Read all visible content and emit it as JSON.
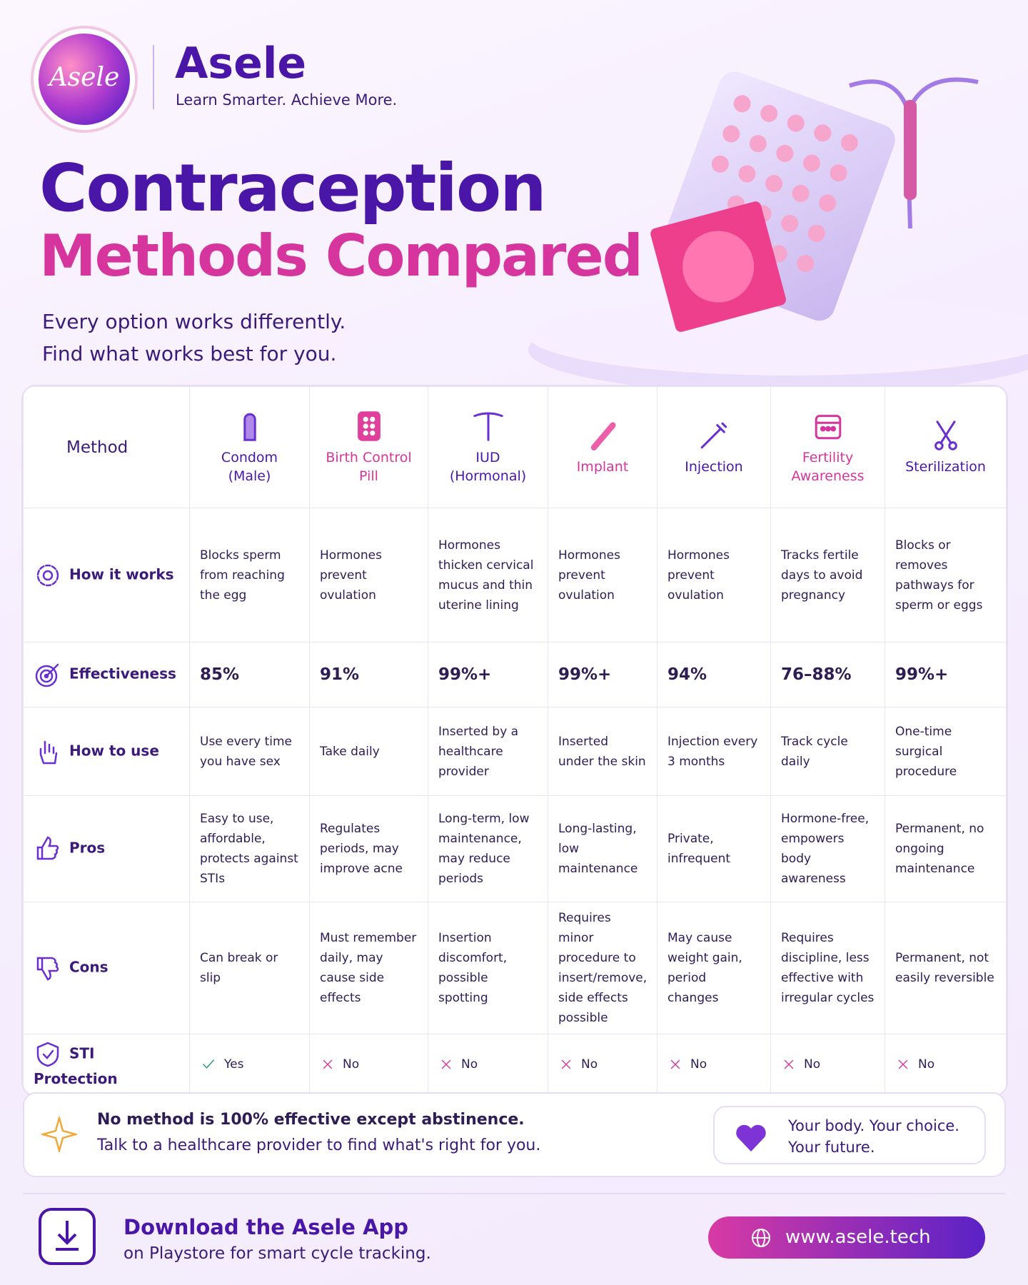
{
  "header": {
    "logo_text": "Asele",
    "brand": "Asele",
    "tagline": "Learn Smarter. Achieve More."
  },
  "hero": {
    "title_line1": "Contraception",
    "title_line2": "Methods Compared",
    "subtitle_line1": "Every option works differently.",
    "subtitle_line2": "Find what works best for you."
  },
  "table": {
    "header": [
      "Method",
      "Condom (Male)",
      "Birth Control Pill",
      "IUD (Hormonal)",
      "Implant",
      "Injection",
      "Fertility Awareness",
      "Sterilization"
    ],
    "rows": [
      {
        "label": "How it works",
        "cells": [
          "Blocks sperm from reaching the egg",
          "Hormones prevent ovulation",
          "Hormones thicken cervical mucus and thin uterine lining",
          "Hormones prevent ovulation",
          "Hormones prevent ovulation",
          "Tracks fertile days to avoid pregnancy",
          "Blocks or removes pathways for sperm or eggs"
        ]
      },
      {
        "label": "Effectiveness",
        "cells": [
          "85%",
          "91%",
          "99%+",
          "99%+",
          "94%",
          "76–88%",
          "99%+"
        ]
      },
      {
        "label": "How to use",
        "cells": [
          "Use every time you have sex",
          "Take daily",
          "Inserted by a healthcare provider",
          "Inserted under the skin",
          "Injection every 3 months",
          "Track cycle daily",
          "One-time surgical procedure"
        ]
      },
      {
        "label": "Pros",
        "cells": [
          "Easy to use, affordable, protects against STIs",
          "Regulates periods, may improve acne",
          "Long-term, low maintenance, may reduce periods",
          "Long-lasting, low maintenance",
          "Private, infrequent",
          "Hormone-free, empowers body awareness",
          "Permanent, no ongoing maintenance"
        ]
      },
      {
        "label": "Cons",
        "cells": [
          "Can break or slip",
          "Must remember daily, may cause side effects",
          "Insertion discomfort, possible spotting",
          "Requires minor procedure to insert/remove, side effects possible",
          "May cause weight gain, period changes",
          "Requires discipline, less effective with irregular cycles",
          "Permanent, not easily reversible"
        ]
      },
      {
        "label": "STI Protection",
        "cells": [
          "Yes",
          "No",
          "No",
          "No",
          "No",
          "No",
          "No"
        ]
      }
    ]
  },
  "note": {
    "title": "No method is 100% effective except abstinence.",
    "text": "Talk to a healthcare provider to find what's right for you."
  },
  "motto": {
    "line1": "Your body. Your choice.",
    "line2": "Your future."
  },
  "footer": {
    "cta_title": "Download the Asele App",
    "cta_text": "on Playstore for smart cycle tracking.",
    "url": "www.asele.tech"
  }
}
